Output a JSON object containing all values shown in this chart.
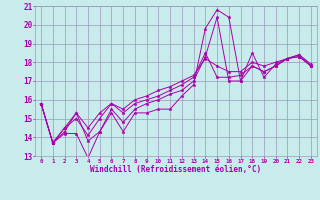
{
  "xlabel": "Windchill (Refroidissement éolien,°C)",
  "ylabel": "",
  "xlim": [
    -0.5,
    23.5
  ],
  "ylim": [
    13,
    21
  ],
  "yticks": [
    13,
    14,
    15,
    16,
    17,
    18,
    19,
    20,
    21
  ],
  "xticks": [
    0,
    1,
    2,
    3,
    4,
    5,
    6,
    7,
    8,
    9,
    10,
    11,
    12,
    13,
    14,
    15,
    16,
    17,
    18,
    19,
    20,
    21,
    22,
    23
  ],
  "bg_color": "#c8ecec",
  "grid_color": "#9999bb",
  "line_color": "#aa00aa",
  "series": [
    [
      15.8,
      13.7,
      14.2,
      14.2,
      12.9,
      14.3,
      15.3,
      14.3,
      15.3,
      15.3,
      15.5,
      15.5,
      16.2,
      16.8,
      19.8,
      20.8,
      20.4,
      17.0,
      18.5,
      17.2,
      17.9,
      18.2,
      18.4,
      17.8
    ],
    [
      15.8,
      13.7,
      14.3,
      15.3,
      13.8,
      14.3,
      15.5,
      14.8,
      15.5,
      15.8,
      16.0,
      16.3,
      16.5,
      17.0,
      18.3,
      20.4,
      17.0,
      17.0,
      17.8,
      17.5,
      17.8,
      18.2,
      18.3,
      17.8
    ],
    [
      15.8,
      13.7,
      14.5,
      15.0,
      14.1,
      15.0,
      15.8,
      15.3,
      15.8,
      16.0,
      16.2,
      16.5,
      16.8,
      17.2,
      18.5,
      17.2,
      17.2,
      17.3,
      17.8,
      17.5,
      17.8,
      18.2,
      18.3,
      17.8
    ],
    [
      15.8,
      13.7,
      14.5,
      15.3,
      14.5,
      15.3,
      15.8,
      15.5,
      16.0,
      16.2,
      16.5,
      16.7,
      17.0,
      17.3,
      18.2,
      17.8,
      17.5,
      17.5,
      18.0,
      17.8,
      18.0,
      18.2,
      18.4,
      17.9
    ]
  ]
}
